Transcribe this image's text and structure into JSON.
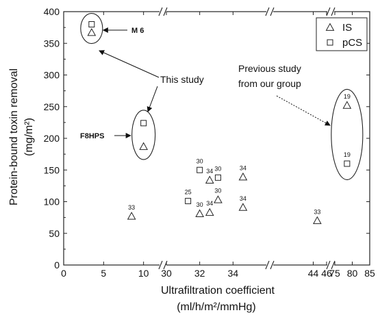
{
  "chart_data": {
    "type": "scatter",
    "xlabel": "Ultrafiltration coefficient",
    "xlabel_unit": "(ml/h/m²/mmHg)",
    "ylabel": "Protein-bound toxin removal",
    "ylabel_unit": "(mg/m²)",
    "ylim": [
      0,
      400
    ],
    "y_ticks": [
      0,
      50,
      100,
      150,
      200,
      250,
      300,
      350,
      400
    ],
    "x_axis_breaks": true,
    "x_segments": [
      {
        "range": [
          0,
          12
        ],
        "ticks": [
          0,
          5,
          10
        ]
      },
      {
        "range": [
          30,
          36
        ],
        "ticks": [
          30,
          32,
          34
        ]
      },
      {
        "range": [
          38,
          46
        ],
        "ticks": [
          44,
          46
        ]
      },
      {
        "range": [
          75,
          85
        ],
        "ticks": [
          75,
          80,
          85
        ]
      }
    ],
    "legend": {
      "placement": "top-right",
      "entries": [
        {
          "name": "IS",
          "marker": "triangle"
        },
        {
          "name": "pCS",
          "marker": "square"
        }
      ]
    },
    "series": [
      {
        "name": "IS",
        "marker": "triangle",
        "points": [
          {
            "x": 3.5,
            "y": 367,
            "label": ""
          },
          {
            "x": 10,
            "y": 187,
            "label": ""
          },
          {
            "x": 8.5,
            "y": 77,
            "label": "33"
          },
          {
            "x": 32,
            "y": 81,
            "label": "30"
          },
          {
            "x": 32.6,
            "y": 83,
            "label": "34"
          },
          {
            "x": 32.6,
            "y": 134,
            "label": "34"
          },
          {
            "x": 33.1,
            "y": 103,
            "label": "30"
          },
          {
            "x": 34.6,
            "y": 139,
            "label": "34"
          },
          {
            "x": 34.6,
            "y": 91,
            "label": "34"
          },
          {
            "x": 44.6,
            "y": 70,
            "label": "33"
          },
          {
            "x": 78.5,
            "y": 252,
            "label": "19"
          }
        ]
      },
      {
        "name": "pCS",
        "marker": "square",
        "points": [
          {
            "x": 3.5,
            "y": 380,
            "label": ""
          },
          {
            "x": 10,
            "y": 224,
            "label": ""
          },
          {
            "x": 31.3,
            "y": 101,
            "label": "25"
          },
          {
            "x": 32,
            "y": 150,
            "label": "30"
          },
          {
            "x": 33.1,
            "y": 138,
            "label": "30"
          },
          {
            "x": 78.5,
            "y": 160,
            "label": "19"
          }
        ]
      }
    ],
    "annotations": {
      "m6": "M 6",
      "f8hps": "F8HPS",
      "this_study": "This study",
      "previous_line1": "Previous study",
      "previous_line2": "from our group"
    }
  }
}
